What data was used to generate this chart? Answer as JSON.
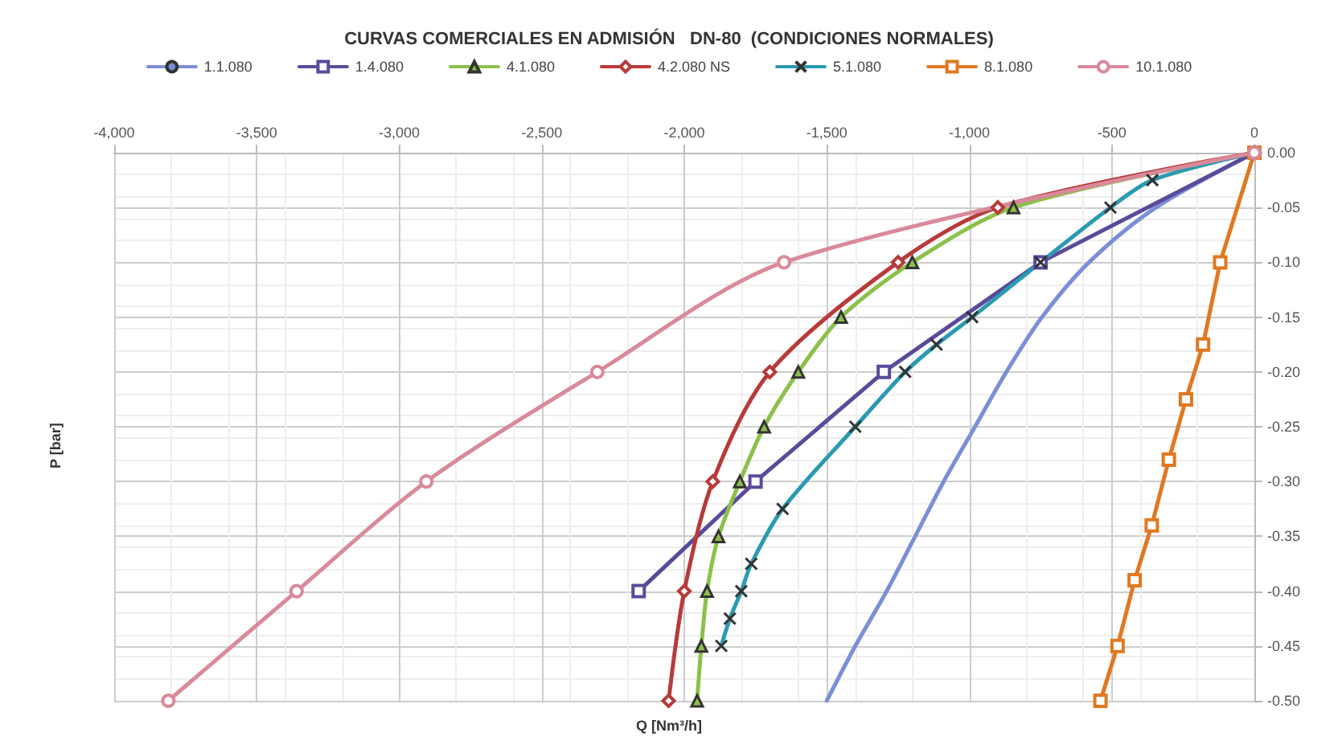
{
  "chart_data": {
    "type": "line",
    "title": "CURVAS COMERCIALES EN ADMISIÓN   DN-80  (CONDICIONES NORMALES)",
    "xlabel": "Q [Nm³/h]",
    "ylabel": "P [bar]",
    "xlim": [
      -4000,
      0
    ],
    "xticks": [
      {
        "value": -4000,
        "label": "-4,000"
      },
      {
        "value": -3500,
        "label": "-3,500"
      },
      {
        "value": -3000,
        "label": "-3,000"
      },
      {
        "value": -2500,
        "label": "-2,500"
      },
      {
        "value": -2000,
        "label": "-2,000"
      },
      {
        "value": -1500,
        "label": "-1,500"
      },
      {
        "value": -1000,
        "label": "-1,000"
      },
      -500,
      0
    ],
    "ylim": [
      -0.5,
      0
    ],
    "yticks": [
      {
        "value": 0,
        "label": "0.00"
      },
      -0.05,
      {
        "value": -0.1,
        "label": "-0.10"
      },
      -0.15,
      {
        "value": -0.2,
        "label": "-0.20"
      },
      -0.25,
      {
        "value": -0.3,
        "label": "-0.30"
      },
      -0.35,
      {
        "value": -0.4,
        "label": "-0.40"
      },
      -0.45,
      {
        "value": -0.5,
        "label": "-0.50"
      }
    ],
    "grid": true,
    "legend": "top",
    "line_style": "solid",
    "series": [
      {
        "name": "1.1.080",
        "color": "#7b8fd6",
        "marker": "none",
        "x": [
          0,
          -345,
          -580,
          -745,
          -870,
          -980,
          -1090,
          -1190,
          -1290,
          -1400,
          -1500
        ],
        "values": [
          0,
          -0.05,
          -0.1,
          -0.15,
          -0.2,
          -0.25,
          -0.3,
          -0.35,
          -0.4,
          -0.45,
          -0.5
        ]
      },
      {
        "name": "1.4.080",
        "color": "#5a4a9a",
        "marker": "square",
        "x": [
          0,
          -750,
          -1300,
          -1750,
          -2160
        ],
        "values": [
          0,
          -0.1,
          -0.2,
          -0.3,
          -0.4
        ]
      },
      {
        "name": "4.1.080",
        "color": "#8cc04a",
        "marker": "triangle",
        "x": [
          0,
          -845,
          -1200,
          -1450,
          -1600,
          -1720,
          -1805,
          -1880,
          -1920,
          -1940,
          -1955
        ],
        "values": [
          0,
          -0.05,
          -0.1,
          -0.15,
          -0.2,
          -0.25,
          -0.3,
          -0.35,
          -0.4,
          -0.45,
          -0.5
        ]
      },
      {
        "name": "4.2.080 NS",
        "color": "#b83a3a",
        "marker": "diamond",
        "x": [
          0,
          -900,
          -1250,
          -1700,
          -1900,
          -2000,
          -2055
        ],
        "values": [
          0,
          -0.05,
          -0.1,
          -0.2,
          -0.3,
          -0.4,
          -0.5
        ]
      },
      {
        "name": "5.1.080",
        "color": "#2a9ab0",
        "marker": "cross",
        "x": [
          0,
          -358,
          -505,
          -750,
          -990,
          -1115,
          -1225,
          -1400,
          -1655,
          -1765,
          -1800,
          -1840,
          -1870
        ],
        "values": [
          0,
          -0.025,
          -0.05,
          -0.1,
          -0.15,
          -0.175,
          -0.2,
          -0.25,
          -0.325,
          -0.375,
          -0.4,
          -0.425,
          -0.45
        ]
      },
      {
        "name": "8.1.080",
        "color": "#e07820",
        "marker": "square",
        "x": [
          0,
          -120,
          -180,
          -240,
          -300,
          -360,
          -420,
          -480,
          -540
        ],
        "values": [
          0,
          -0.1,
          -0.175,
          -0.225,
          -0.28,
          -0.34,
          -0.39,
          -0.45,
          -0.5
        ]
      },
      {
        "name": "10.1.080",
        "color": "#d98a9a",
        "marker": "circle",
        "x": [
          0,
          -1650,
          -2305,
          -2905,
          -3360,
          -3810
        ],
        "values": [
          0,
          -0.1,
          -0.2,
          -0.3,
          -0.4,
          -0.5
        ]
      }
    ]
  }
}
